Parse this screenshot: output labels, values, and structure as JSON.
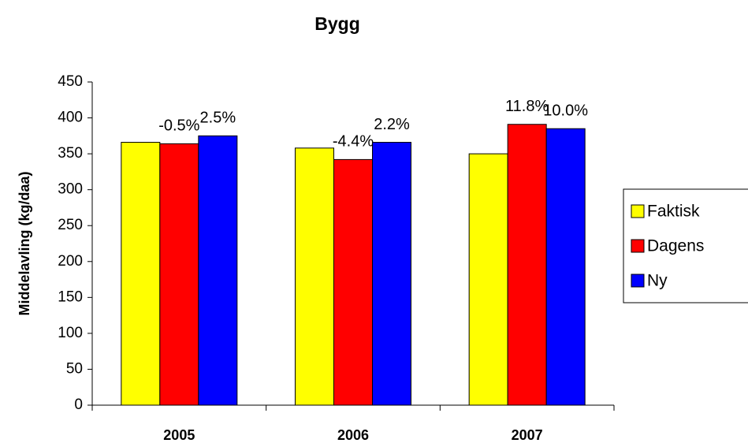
{
  "chart_data": {
    "type": "bar",
    "title": "Bygg",
    "y_label": "Middelavling (kg/daa)",
    "categories": [
      "2005",
      "2006",
      "2007"
    ],
    "series": [
      {
        "name": "Faktisk",
        "color": "#ffff00",
        "values": [
          366,
          358,
          350
        ]
      },
      {
        "name": "Dagens",
        "color": "#ff0000",
        "values": [
          364,
          342,
          391
        ],
        "annotations": [
          "-0.5%",
          "-4.4%",
          "11.8%"
        ]
      },
      {
        "name": "Ny",
        "color": "#0000ff",
        "values": [
          375,
          366,
          385
        ],
        "annotations": [
          "2.5%",
          "2.2%",
          "10.0%"
        ]
      }
    ],
    "ylim": [
      0,
      450
    ],
    "yticks": [
      0,
      50,
      100,
      150,
      200,
      250,
      300,
      350,
      400,
      450
    ],
    "grid": false,
    "legend": "right"
  }
}
